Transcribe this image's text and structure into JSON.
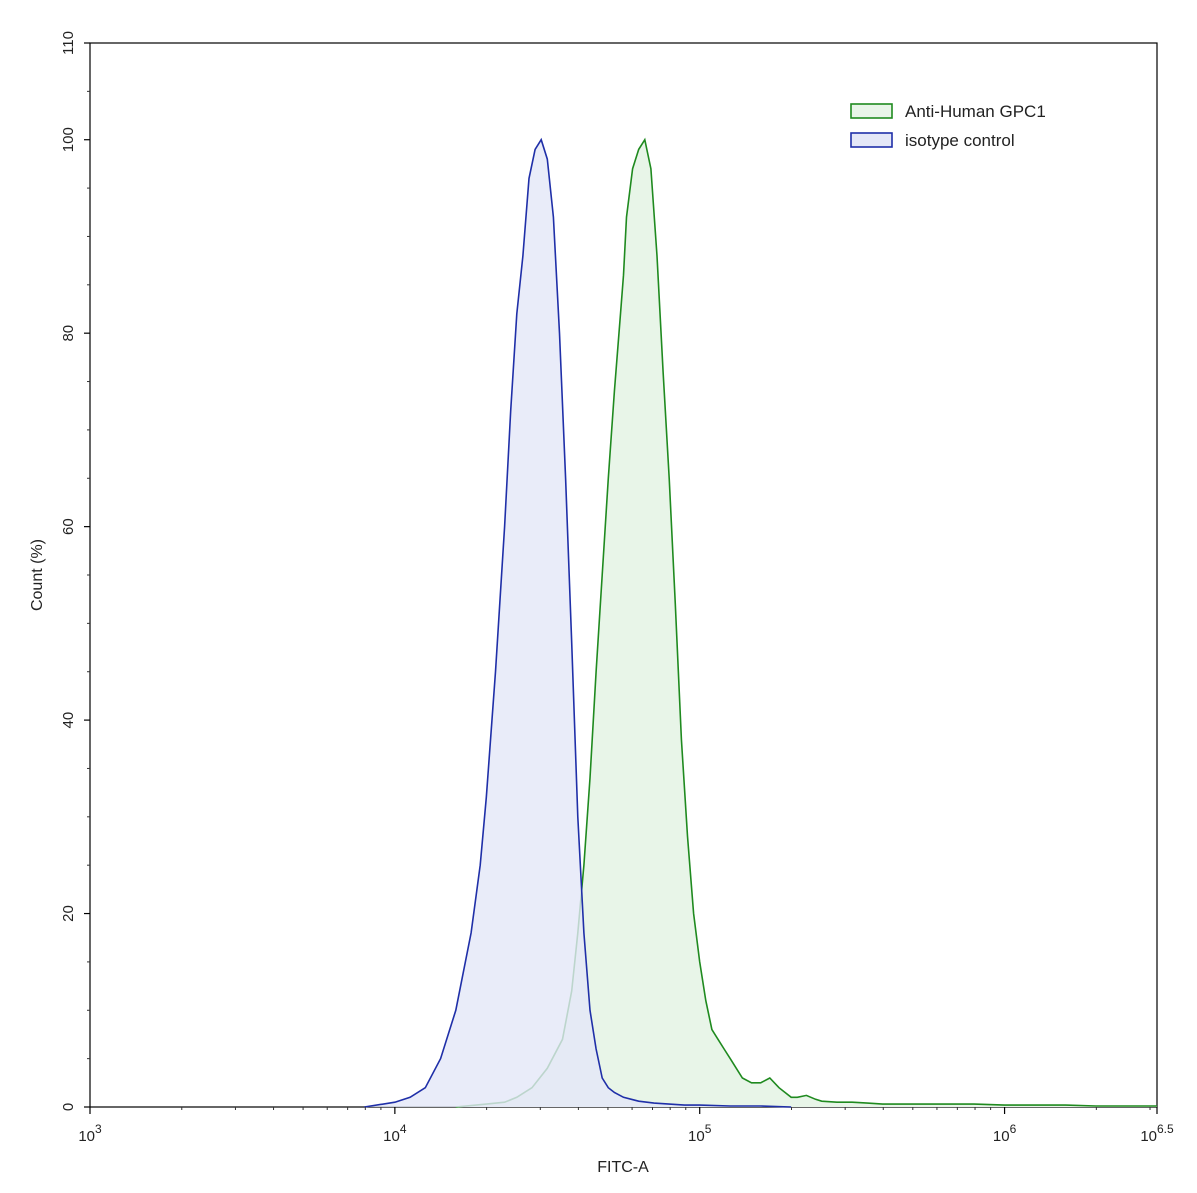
{
  "chart_data": {
    "type": "area",
    "xlabel": "FITC-A",
    "ylabel": "Count  (%)",
    "xscale": "log10",
    "xlim": [
      3,
      6.5
    ],
    "ylim": [
      0,
      110
    ],
    "x_ticks": [
      {
        "base": "10",
        "exp": "3"
      },
      {
        "base": "10",
        "exp": "4"
      },
      {
        "base": "10",
        "exp": "5"
      },
      {
        "base": "10",
        "exp": "6"
      },
      {
        "base": "10",
        "exp": "6.5"
      }
    ],
    "y_ticks": [
      "0",
      "20",
      "40",
      "60",
      "80",
      "100",
      "110"
    ],
    "grid": false,
    "legend_position": "top-right",
    "series": [
      {
        "name": "Anti-Human GPC1",
        "color": "#1f8a1f",
        "fill": "#e8f5e8",
        "x_log10": [
          4.2,
          4.3,
          4.36,
          4.4,
          4.45,
          4.5,
          4.55,
          4.58,
          4.6,
          4.62,
          4.64,
          4.66,
          4.68,
          4.7,
          4.72,
          4.74,
          4.75,
          4.76,
          4.78,
          4.8,
          4.82,
          4.84,
          4.86,
          4.88,
          4.9,
          4.92,
          4.94,
          4.96,
          4.98,
          5.0,
          5.02,
          5.04,
          5.06,
          5.08,
          5.1,
          5.12,
          5.14,
          5.17,
          5.2,
          5.23,
          5.26,
          5.28,
          5.3,
          5.32,
          5.35,
          5.38,
          5.4,
          5.45,
          5.5,
          5.55,
          5.6,
          5.7,
          5.8,
          5.9,
          6.0,
          6.1,
          6.2,
          6.3,
          6.4,
          6.5
        ],
        "y": [
          0,
          0.3,
          0.5,
          1,
          2,
          4,
          7,
          12,
          18,
          25,
          34,
          45,
          55,
          65,
          74,
          82,
          86,
          92,
          97,
          99,
          100,
          97,
          88,
          76,
          65,
          52,
          38,
          28,
          20,
          15,
          11,
          8,
          7,
          6,
          5,
          4,
          3,
          2.5,
          2.5,
          3,
          2,
          1.5,
          1,
          1,
          1.2,
          0.8,
          0.6,
          0.5,
          0.5,
          0.4,
          0.3,
          0.3,
          0.3,
          0.3,
          0.2,
          0.2,
          0.2,
          0.1,
          0.1,
          0.1
        ]
      },
      {
        "name": "isotype control",
        "color": "#1f2fa8",
        "fill": "#e4e7f7",
        "x_log10": [
          3.9,
          4.0,
          4.05,
          4.1,
          4.15,
          4.2,
          4.25,
          4.28,
          4.3,
          4.33,
          4.36,
          4.38,
          4.4,
          4.42,
          4.44,
          4.46,
          4.48,
          4.5,
          4.52,
          4.54,
          4.56,
          4.58,
          4.6,
          4.62,
          4.64,
          4.66,
          4.68,
          4.7,
          4.72,
          4.75,
          4.8,
          4.85,
          4.9,
          4.95,
          5.0,
          5.1,
          5.2,
          5.3
        ],
        "y": [
          0,
          0.5,
          1,
          2,
          5,
          10,
          18,
          25,
          32,
          45,
          60,
          72,
          82,
          88,
          96,
          99,
          100,
          98,
          92,
          80,
          65,
          48,
          30,
          18,
          10,
          6,
          3,
          2,
          1.5,
          1,
          0.6,
          0.4,
          0.3,
          0.2,
          0.2,
          0.1,
          0.1,
          0
        ]
      }
    ]
  }
}
